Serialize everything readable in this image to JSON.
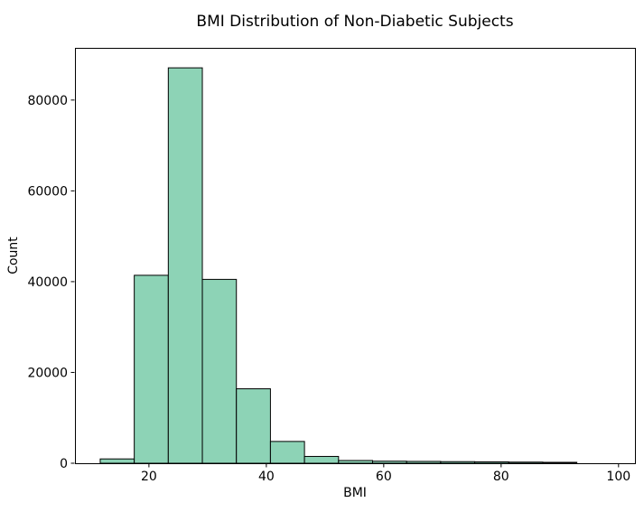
{
  "chart_data": {
    "type": "bar",
    "subtype": "histogram",
    "title": "BMI Distribution of Non-Diabetic Subjects",
    "xlabel": "BMI",
    "ylabel": "Count",
    "bin_edges": [
      11.7,
      17.5,
      23.3,
      29.1,
      34.9,
      40.7,
      46.5,
      52.3,
      58.1,
      63.9,
      69.7,
      75.5,
      81.3,
      87.1,
      92.9
    ],
    "counts": [
      950,
      41400,
      87100,
      40500,
      16400,
      4800,
      1500,
      600,
      450,
      400,
      350,
      300,
      250,
      200
    ],
    "xlim": [
      7.4,
      102.8
    ],
    "ylim": [
      0,
      91500
    ],
    "xticks": [
      20,
      40,
      60,
      80,
      100
    ],
    "yticks": [
      0,
      20000,
      40000,
      60000,
      80000
    ],
    "grid": false,
    "legend": null,
    "bar_color": "#8dd3b6",
    "bar_edge_color": "#000000",
    "spine_color": "#000000",
    "background_color": "#ffffff"
  }
}
